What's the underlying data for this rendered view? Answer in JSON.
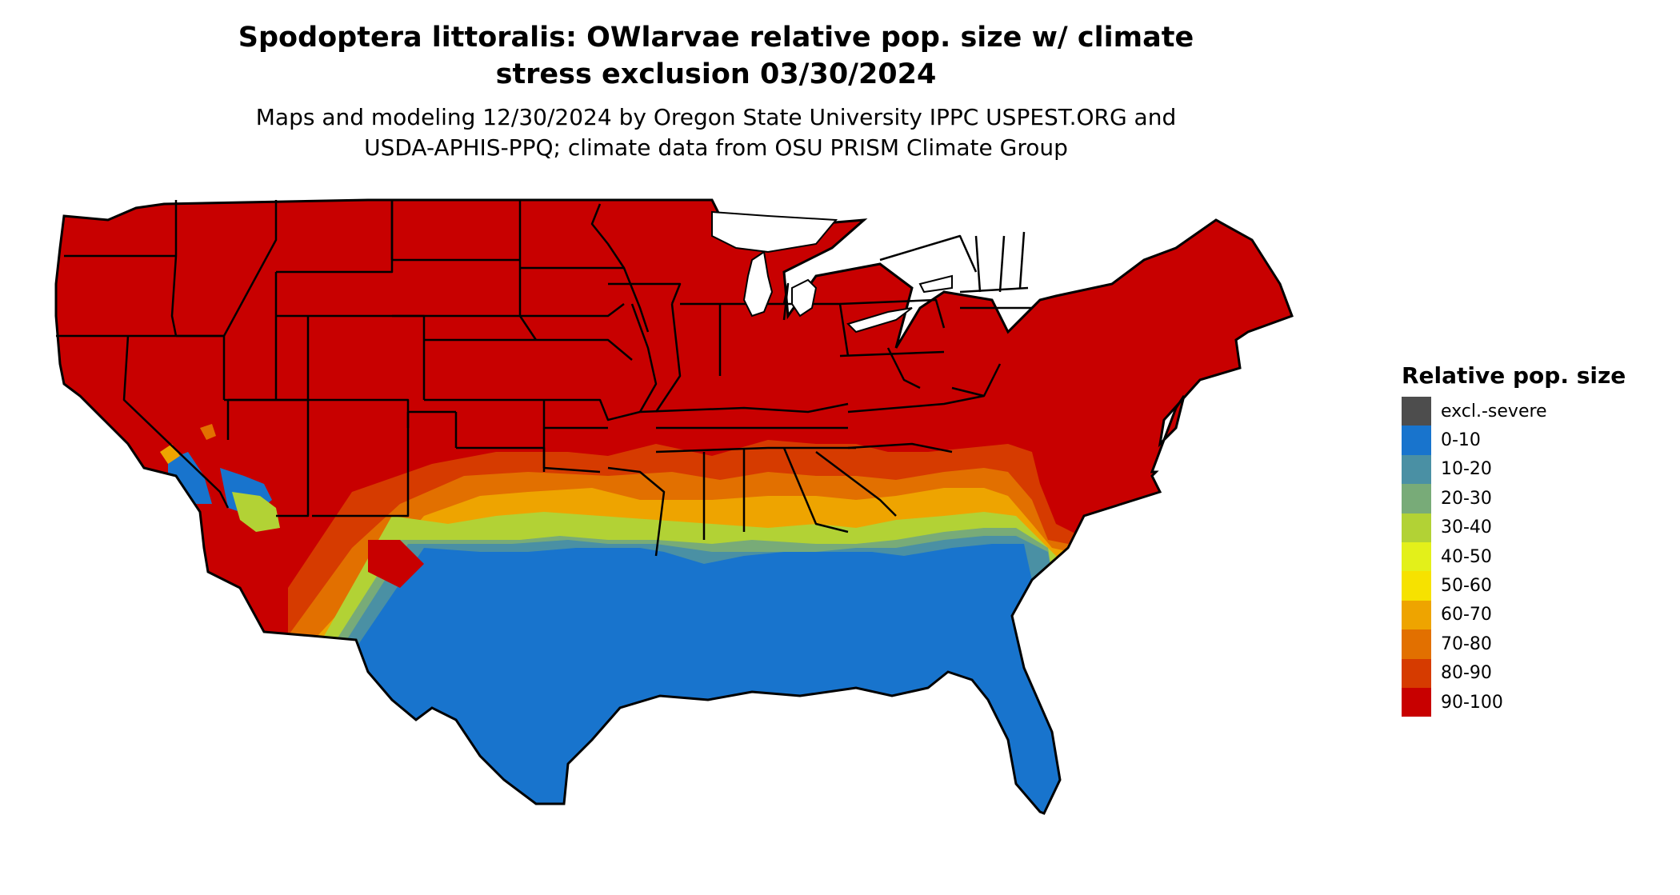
{
  "title_line1": "Spodoptera littoralis: OWlarvae relative pop. size w/ climate",
  "title_line2": "stress exclusion 03/30/2024",
  "subtitle_line1": "Maps and modeling 12/30/2024 by Oregon State University IPPC USPEST.ORG and",
  "subtitle_line2": "USDA-APHIS-PPQ; climate data from OSU PRISM Climate Group",
  "legend": {
    "title": "Relative pop. size",
    "items": [
      {
        "label": "excl.-severe",
        "color": "#4d4d4d"
      },
      {
        "label": "0-10",
        "color": "#1874cd"
      },
      {
        "label": "10-20",
        "color": "#4a90a4"
      },
      {
        "label": "20-30",
        "color": "#78ab78"
      },
      {
        "label": "30-40",
        "color": "#b2d235"
      },
      {
        "label": "40-50",
        "color": "#e3f01a"
      },
      {
        "label": "50-60",
        "color": "#f6e200"
      },
      {
        "label": "60-70",
        "color": "#eea400"
      },
      {
        "label": "70-80",
        "color": "#e27000"
      },
      {
        "label": "80-90",
        "color": "#d63b00"
      },
      {
        "label": "90-100",
        "color": "#c80000"
      }
    ]
  }
}
